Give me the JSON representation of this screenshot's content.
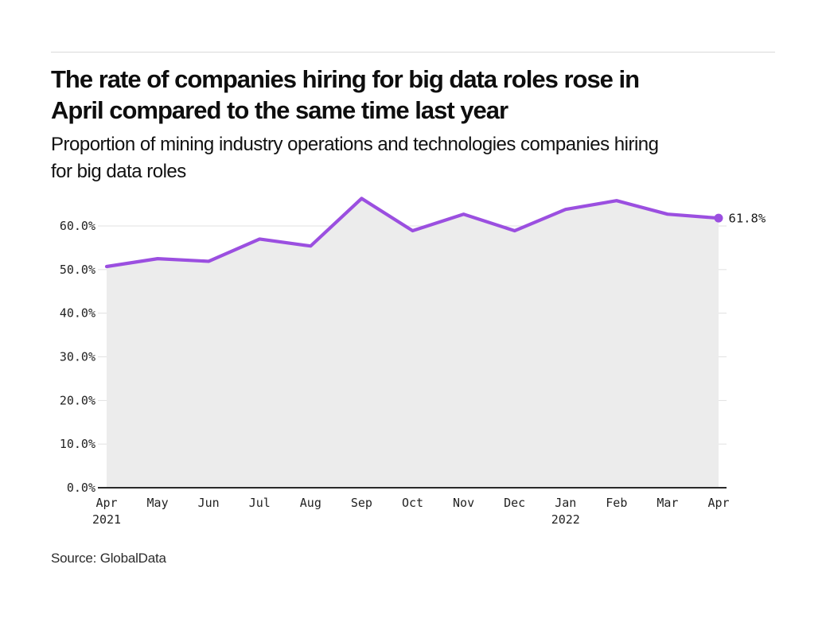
{
  "header": {
    "title_lines": [
      "The rate of companies hiring for big data roles rose in",
      "April compared to the same time last year"
    ],
    "subtitle_lines": [
      "Proportion of mining industry operations and technologies companies hiring",
      "for big data roles"
    ]
  },
  "chart_data": {
    "type": "line",
    "title": "The rate of companies hiring for big data roles rose in April compared to the same time last year",
    "subtitle": "Proportion of mining industry operations and technologies companies hiring for big data roles",
    "x_labels": [
      "Apr",
      "May",
      "Jun",
      "Jul",
      "Aug",
      "Sep",
      "Oct",
      "Nov",
      "Dec",
      "Jan",
      "Feb",
      "Mar",
      "Apr"
    ],
    "x_sublabels": [
      {
        "index": 0,
        "label": "2021"
      },
      {
        "index": 9,
        "label": "2022"
      }
    ],
    "series": [
      {
        "name": "Proportion of companies hiring for big data roles",
        "values": [
          50.7,
          52.5,
          51.9,
          57.0,
          55.4,
          66.3,
          58.9,
          62.7,
          58.9,
          63.8,
          65.8,
          62.7,
          61.8
        ]
      }
    ],
    "y_ticks": [
      0,
      10,
      20,
      30,
      40,
      50,
      60
    ],
    "y_tick_labels": [
      "0.0%",
      "10.0%",
      "20.0%",
      "30.0%",
      "40.0%",
      "50.0%",
      "60.0%"
    ],
    "ylim": [
      0,
      70
    ],
    "xlabel": "",
    "ylabel": "",
    "grid": "horizontal",
    "legend": "none",
    "end_label": "61.8%",
    "colors": {
      "line": "#9b4fe0",
      "area": "#ececec",
      "grid": "#e1e1e1",
      "axis": "#2a2a2a",
      "tick_text": "#222222",
      "end_label_text": "#1a1a1a"
    }
  },
  "footer": {
    "source": "Source: GlobalData"
  }
}
